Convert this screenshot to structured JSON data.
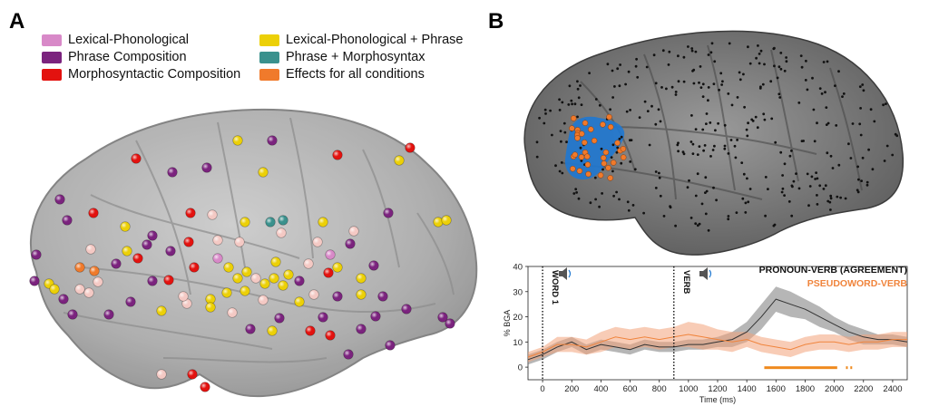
{
  "panels": {
    "a": "A",
    "b": "B"
  },
  "legend": [
    {
      "label": "Lexical-Phonological",
      "color": "#d889c8"
    },
    {
      "label": "Phrase Composition",
      "color": "#7b237e"
    },
    {
      "label": "Morphosyntactic Composition",
      "color": "#e3120f"
    },
    {
      "label": "Lexical-Phonological + Phrase",
      "color": "#ecd007"
    },
    {
      "label": "Phrase + Morphosyntax",
      "color": "#3a918d"
    },
    {
      "label": "Effects for all conditions",
      "color": "#f07a2b"
    }
  ],
  "plot": {
    "legend": [
      {
        "label": "PRONOUN-VERB (AGREEMENT)",
        "color": "#111111"
      },
      {
        "label": "PSEUDOWORD-VERB",
        "color": "#f0843c"
      }
    ],
    "markers": [
      {
        "label": "WORD 1",
        "x": 0
      },
      {
        "label": "VERB",
        "x": 900
      }
    ],
    "significance_bars": [
      {
        "x0": 1520,
        "x1": 2020
      },
      {
        "x0": 2080,
        "x1": 2090
      },
      {
        "x0": 2110,
        "x1": 2120
      }
    ]
  },
  "chart_data": {
    "type": "line",
    "xlabel": "Time (ms)",
    "ylabel": "% BGA",
    "xlim": [
      -100,
      2500
    ],
    "ylim": [
      -5,
      40
    ],
    "xticks": [
      0,
      200,
      400,
      600,
      800,
      1000,
      1200,
      1400,
      1600,
      1800,
      2000,
      2200,
      2400
    ],
    "yticks": [
      0,
      10,
      20,
      30,
      40
    ],
    "x": [
      -100,
      0,
      100,
      200,
      300,
      400,
      500,
      600,
      700,
      800,
      900,
      1000,
      1100,
      1200,
      1300,
      1400,
      1500,
      1600,
      1700,
      1800,
      1900,
      2000,
      2100,
      2200,
      2300,
      2400,
      2500
    ],
    "series": [
      {
        "name": "PRONOUN-VERB (AGREEMENT)",
        "color": "#333333",
        "values": [
          3,
          5,
          8,
          10,
          7,
          9,
          8,
          7,
          9,
          8,
          8,
          9,
          9,
          10,
          11,
          14,
          20,
          27,
          25,
          23,
          20,
          17,
          14,
          12,
          11,
          11,
          10
        ],
        "error": [
          2,
          2,
          2,
          2,
          2,
          2,
          2,
          2,
          2,
          2,
          2,
          2,
          2,
          2,
          3,
          4,
          5,
          5,
          5,
          4,
          4,
          3,
          3,
          3,
          2,
          2,
          2
        ]
      },
      {
        "name": "PSEUDOWORD-VERB",
        "color": "#f0843c",
        "values": [
          4,
          6,
          9,
          9,
          8,
          10,
          12,
          11,
          12,
          11,
          12,
          13,
          12,
          11,
          10,
          11,
          9,
          8,
          7,
          9,
          10,
          10,
          9,
          10,
          10,
          11,
          11
        ],
        "error": [
          2,
          2,
          3,
          3,
          3,
          4,
          4,
          4,
          4,
          4,
          4,
          5,
          5,
          4,
          4,
          3,
          3,
          3,
          3,
          3,
          3,
          3,
          3,
          3,
          3,
          3,
          3
        ]
      }
    ]
  }
}
